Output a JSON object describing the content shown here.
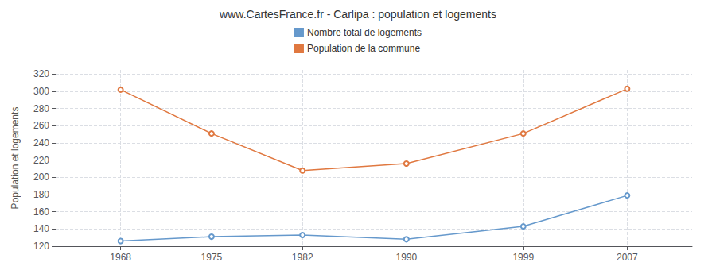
{
  "chart_data": {
    "type": "line",
    "title": "www.CartesFrance.fr - Carlipa : population et logements",
    "ylabel": "Population et logements",
    "x": [
      1968,
      1975,
      1982,
      1990,
      1999,
      2007
    ],
    "series": [
      {
        "name": "Nombre total de logements",
        "color": "#6699cc",
        "marker": "circle",
        "values": [
          126,
          131,
          133,
          128,
          143,
          179
        ]
      },
      {
        "name": "Population de la commune",
        "color": "#e07840",
        "marker": "circle",
        "values": [
          302,
          251,
          208,
          216,
          251,
          303
        ]
      }
    ],
    "xlim": [
      1963,
      2012
    ],
    "xticks": [
      1968,
      1975,
      1982,
      1990,
      1999,
      2007
    ],
    "ylim": [
      120,
      325
    ],
    "yticks": [
      120,
      140,
      160,
      180,
      200,
      220,
      240,
      260,
      280,
      300,
      320
    ],
    "grid": true,
    "legend": "top"
  }
}
